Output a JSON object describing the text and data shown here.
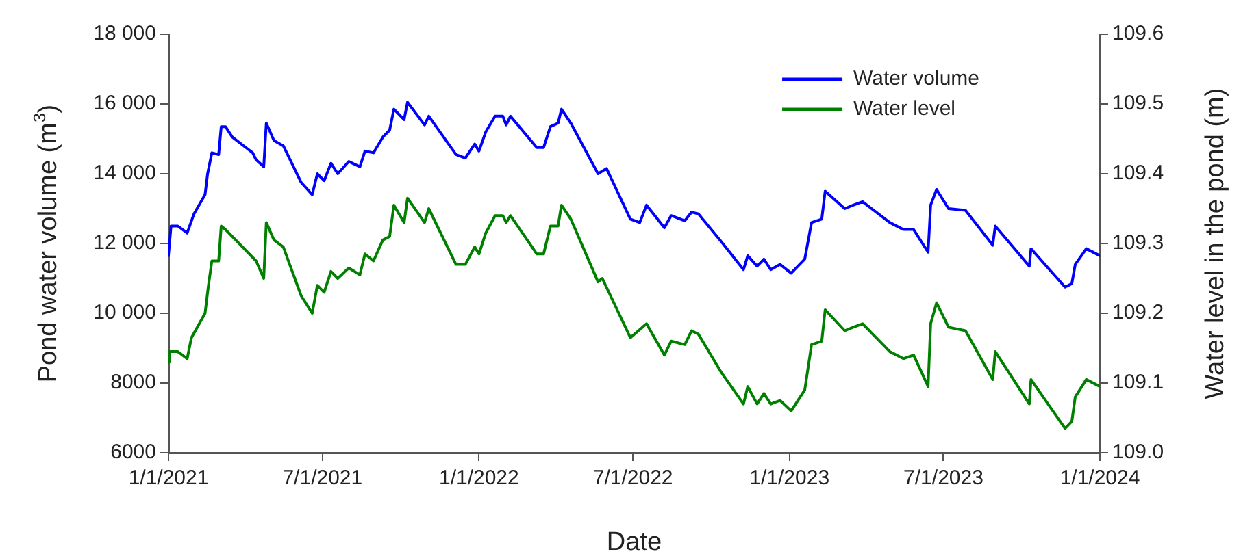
{
  "chart_data": {
    "type": "line",
    "xlabel": "Date",
    "ylabel": "Pond water volume (m$^{3}$)",
    "y2label": "Water level in the pond (m)",
    "xlim": [
      "2021-01-01",
      "2024-01-01"
    ],
    "xticks": [
      {
        "value": "2021-01-01",
        "label": "1/1/2021"
      },
      {
        "value": "2021-07-01",
        "label": "7/1/2021"
      },
      {
        "value": "2022-01-01",
        "label": "1/1/2022"
      },
      {
        "value": "2022-07-01",
        "label": "7/1/2022"
      },
      {
        "value": "2023-01-01",
        "label": "1/1/2023"
      },
      {
        "value": "2023-07-01",
        "label": "7/1/2023"
      },
      {
        "value": "2024-01-01",
        "label": "1/1/2024"
      }
    ],
    "ylim": [
      6000,
      18000
    ],
    "yticks": [
      6000,
      8000,
      {
        "value": 10000,
        "label": "10 000"
      },
      {
        "value": 12000,
        "label": "12 000"
      },
      {
        "value": 14000,
        "label": "14 000"
      },
      {
        "value": 16000,
        "label": "16 000"
      },
      {
        "value": 18000,
        "label": "18 000"
      }
    ],
    "y2lim": [
      109.0,
      109.6
    ],
    "y2ticks": [
      {
        "value": 109.0,
        "label": "109.0"
      },
      109.1,
      109.2,
      109.3,
      109.4,
      109.5,
      109.6
    ],
    "grid": false,
    "legend": "top right",
    "marker": "none",
    "line_style": "solid",
    "series": [
      {
        "name": "Water volume",
        "color": "#0000ff",
        "x": [
          "2021-01-01",
          "2021-01-04",
          "2021-01-12",
          "2021-01-23",
          "2021-01-31",
          "2021-02-13",
          "2021-02-16",
          "2021-02-21",
          "2021-03-01",
          "2021-03-04",
          "2021-03-09",
          "2021-03-17",
          "2021-04-02",
          "2021-04-10",
          "2021-04-14",
          "2021-04-23",
          "2021-04-26",
          "2021-05-05",
          "2021-05-16",
          "2021-06-06",
          "2021-06-19",
          "2021-06-25",
          "2021-07-03",
          "2021-07-11",
          "2021-07-19",
          "2021-08-01",
          "2021-08-14",
          "2021-08-20",
          "2021-08-30",
          "2021-09-10",
          "2021-09-18",
          "2021-09-23",
          "2021-10-05",
          "2021-10-09",
          "2021-10-29",
          "2021-11-03",
          "2021-12-05",
          "2021-12-16",
          "2021-12-27",
          "2022-01-01",
          "2022-01-09",
          "2022-01-20",
          "2022-01-29",
          "2022-02-02",
          "2022-02-07",
          "2022-03-10",
          "2022-03-18",
          "2022-03-26",
          "2022-04-04",
          "2022-04-08",
          "2022-04-19",
          "2022-05-21",
          "2022-05-31",
          "2022-06-28",
          "2022-07-09",
          "2022-07-17",
          "2022-08-07",
          "2022-08-15",
          "2022-08-31",
          "2022-09-08",
          "2022-09-16",
          "2022-10-13",
          "2022-11-08",
          "2022-11-13",
          "2022-11-24",
          "2022-12-02",
          "2022-12-10",
          "2022-12-21",
          "2023-01-03",
          "2023-01-19",
          "2023-01-27",
          "2023-02-08",
          "2023-02-12",
          "2023-03-07",
          "2023-03-17",
          "2023-03-28",
          "2023-04-29",
          "2023-05-15",
          "2023-05-27",
          "2023-06-13",
          "2023-06-16",
          "2023-06-23",
          "2023-07-07",
          "2023-07-27",
          "2023-08-28",
          "2023-08-31",
          "2023-10-10",
          "2023-10-12",
          "2023-11-21",
          "2023-11-29",
          "2023-12-03",
          "2023-12-16",
          "2024-01-01"
        ],
        "values": [
          11650,
          12500,
          12500,
          12300,
          12850,
          13400,
          14000,
          14600,
          14550,
          15350,
          15350,
          15050,
          14750,
          14600,
          14400,
          14200,
          15450,
          14950,
          14800,
          13750,
          13400,
          14000,
          13800,
          14300,
          14000,
          14350,
          14200,
          14650,
          14600,
          15050,
          15250,
          15850,
          15550,
          16050,
          15400,
          15650,
          14550,
          14450,
          14850,
          14650,
          15200,
          15650,
          15650,
          15400,
          15650,
          14750,
          14750,
          15350,
          15450,
          15850,
          15450,
          14000,
          14150,
          12700,
          12600,
          13100,
          12450,
          12800,
          12650,
          12900,
          12850,
          12050,
          11250,
          11650,
          11350,
          11550,
          11250,
          11400,
          11150,
          11550,
          12600,
          12700,
          13500,
          13000,
          13100,
          13200,
          12600,
          12400,
          12400,
          11750,
          13100,
          13550,
          13000,
          12950,
          11950,
          12500,
          11350,
          11850,
          10750,
          10850,
          11400,
          11850,
          11650
        ]
      },
      {
        "name": "Water level",
        "color": "#008000",
        "axis": "y2",
        "x": [
          "2021-01-01",
          "2021-01-02",
          "2021-01-12",
          "2021-01-23",
          "2021-01-28",
          "2021-02-13",
          "2021-02-17",
          "2021-02-21",
          "2021-03-01",
          "2021-03-04",
          "2021-03-09",
          "2021-04-02",
          "2021-04-14",
          "2021-04-23",
          "2021-04-26",
          "2021-05-05",
          "2021-05-16",
          "2021-06-06",
          "2021-06-19",
          "2021-06-25",
          "2021-07-03",
          "2021-07-11",
          "2021-07-19",
          "2021-08-01",
          "2021-08-14",
          "2021-08-20",
          "2021-08-30",
          "2021-09-10",
          "2021-09-18",
          "2021-09-23",
          "2021-10-05",
          "2021-10-09",
          "2021-10-29",
          "2021-11-03",
          "2021-12-05",
          "2021-12-16",
          "2021-12-27",
          "2022-01-01",
          "2022-01-09",
          "2022-01-20",
          "2022-01-29",
          "2022-02-02",
          "2022-02-07",
          "2022-03-10",
          "2022-03-18",
          "2022-03-26",
          "2022-04-04",
          "2022-04-08",
          "2022-04-19",
          "2022-05-21",
          "2022-05-26",
          "2022-06-28",
          "2022-07-17",
          "2022-08-07",
          "2022-08-15",
          "2022-08-31",
          "2022-09-08",
          "2022-09-16",
          "2022-10-13",
          "2022-11-08",
          "2022-11-13",
          "2022-11-24",
          "2022-12-02",
          "2022-12-10",
          "2022-12-21",
          "2023-01-03",
          "2023-01-19",
          "2023-01-27",
          "2023-02-08",
          "2023-02-12",
          "2023-03-07",
          "2023-03-17",
          "2023-03-28",
          "2023-04-29",
          "2023-05-15",
          "2023-05-27",
          "2023-06-13",
          "2023-06-16",
          "2023-06-23",
          "2023-07-07",
          "2023-07-27",
          "2023-08-28",
          "2023-08-31",
          "2023-10-10",
          "2023-10-12",
          "2023-11-21",
          "2023-11-29",
          "2023-12-03",
          "2023-12-16",
          "2024-01-01"
        ],
        "values": [
          109.13,
          109.145,
          109.145,
          109.135,
          109.165,
          109.2,
          109.24,
          109.275,
          109.275,
          109.325,
          109.32,
          109.29,
          109.275,
          109.25,
          109.33,
          109.305,
          109.295,
          109.225,
          109.2,
          109.24,
          109.23,
          109.26,
          109.25,
          109.265,
          109.255,
          109.285,
          109.275,
          109.305,
          109.31,
          109.355,
          109.33,
          109.365,
          109.33,
          109.35,
          109.27,
          109.27,
          109.295,
          109.285,
          109.315,
          109.34,
          109.34,
          109.33,
          109.34,
          109.285,
          109.285,
          109.325,
          109.325,
          109.355,
          109.335,
          109.245,
          109.25,
          109.165,
          109.185,
          109.14,
          109.16,
          109.155,
          109.175,
          109.17,
          109.115,
          109.07,
          109.095,
          109.07,
          109.085,
          109.07,
          109.075,
          109.06,
          109.09,
          109.155,
          109.16,
          109.205,
          109.175,
          109.18,
          109.185,
          109.145,
          109.135,
          109.14,
          109.095,
          109.185,
          109.215,
          109.18,
          109.175,
          109.105,
          109.145,
          109.07,
          109.105,
          109.035,
          109.045,
          109.08,
          109.105,
          109.095
        ]
      }
    ]
  }
}
